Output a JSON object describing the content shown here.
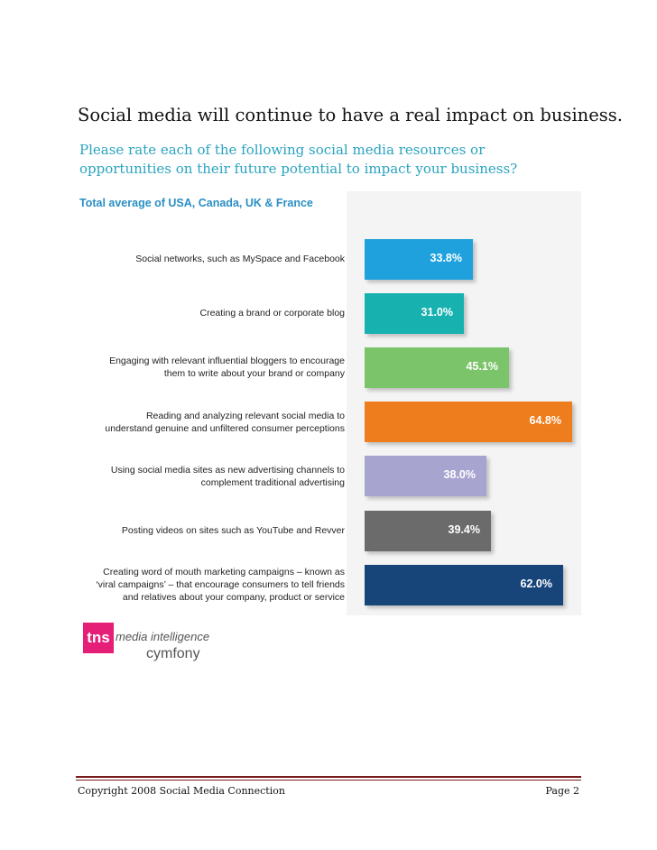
{
  "headline": "Social media will continue to have a real impact on business.",
  "question": "Please rate each of the following social media resources or opportunities on their future potential to impact your business?",
  "chart_data": {
    "type": "bar",
    "orientation": "horizontal",
    "subtitle": "Total average of USA, Canada, UK & France",
    "categories": [
      "Social networks, such as MySpace and Facebook",
      "Creating a brand or corporate blog",
      "Engaging with relevant influential bloggers to encourage\nthem to write about your brand or company",
      "Reading and analyzing relevant social media to\nunderstand genuine and unfiltered consumer perceptions",
      "Using social media sites as new advertising channels to\ncomplement traditional advertising",
      "Posting videos on sites such as YouTube and Revver",
      "Creating word of mouth marketing campaigns – known as\n‘viral campaigns’ – that encourage consumers to tell friends\nand relatives about your company, product or service"
    ],
    "values": [
      33.8,
      31.0,
      45.1,
      64.8,
      38.0,
      39.4,
      62.0
    ],
    "value_labels": [
      "33.8%",
      "31.0%",
      "45.1%",
      "64.8%",
      "38.0%",
      "39.4%",
      "62.0%"
    ],
    "colors": [
      "#1ea1dc",
      "#17b2b0",
      "#7cc46a",
      "#ee7d1d",
      "#a8a4d0",
      "#6b6b6b",
      "#17457a"
    ],
    "xlim": [
      0,
      64.8
    ],
    "grid": false,
    "legend": "none"
  },
  "logo": {
    "mark": "tns",
    "line1": "media intelligence",
    "line2": "cymfony"
  },
  "footer": {
    "left": "Copyright 2008  Social Media Connection",
    "right": "Page 2"
  }
}
